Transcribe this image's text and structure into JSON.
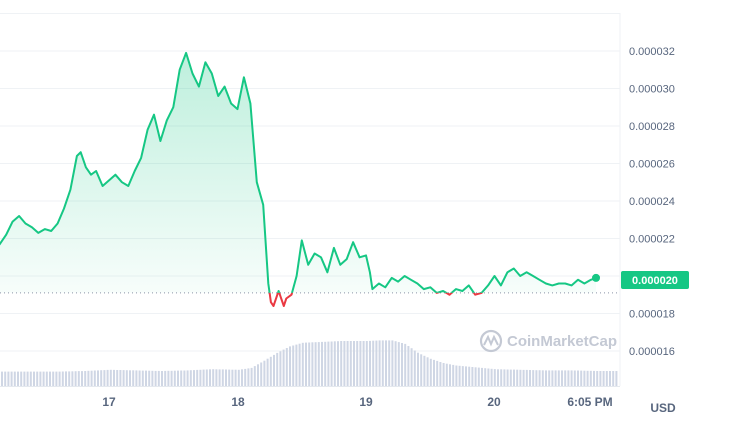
{
  "chart_data": {
    "type": "area",
    "y_ticks": [
      "0.000016",
      "0.000018",
      "0.000020",
      "0.000022",
      "0.000024",
      "0.000026",
      "0.000028",
      "0.000030",
      "0.000032"
    ],
    "x_ticks": [
      "17",
      "18",
      "19",
      "20",
      "6:05 PM"
    ],
    "unit_label": "USD",
    "current_price": "0.000020",
    "reference_price": 1.91e-05,
    "watermark": "CoinMarketCap",
    "colors": {
      "up_line": "#16c784",
      "down_line": "#ea3943",
      "price_tag": "#16c784",
      "volume": "#cfd6e4",
      "grid": "#eff2f5"
    },
    "price_series": {
      "x": [
        16.0,
        16.05,
        16.1,
        16.15,
        16.2,
        16.25,
        16.3,
        16.35,
        16.4,
        16.45,
        16.5,
        16.55,
        16.6,
        16.65,
        16.7,
        16.75,
        16.78,
        16.82,
        16.86,
        16.9,
        16.95,
        17.0,
        17.05,
        17.1,
        17.15,
        17.2,
        17.25,
        17.3,
        17.35,
        17.4,
        17.45,
        17.5,
        17.55,
        17.6,
        17.65,
        17.7,
        17.75,
        17.8,
        17.85,
        17.9,
        17.95,
        18.0,
        18.05,
        18.1,
        18.15,
        18.2,
        18.24,
        18.26,
        18.28,
        18.32,
        18.36,
        18.38,
        18.42,
        18.46,
        18.5,
        18.55,
        18.6,
        18.65,
        18.7,
        18.75,
        18.8,
        18.85,
        18.9,
        18.95,
        19.0,
        19.03,
        19.05,
        19.1,
        19.15,
        19.2,
        19.25,
        19.3,
        19.35,
        19.4,
        19.45,
        19.5,
        19.55,
        19.6,
        19.65,
        19.7,
        19.75,
        19.8,
        19.85,
        19.9,
        19.95,
        20.0,
        20.05,
        20.1,
        20.15,
        20.2,
        20.25,
        20.3,
        20.35,
        20.4,
        20.45,
        20.5,
        20.55,
        20.6,
        20.65,
        20.7,
        20.75,
        20.79
      ],
      "y": [
        2.23e-05,
        2.16e-05,
        2.13e-05,
        2.17e-05,
        2.22e-05,
        2.29e-05,
        2.32e-05,
        2.28e-05,
        2.26e-05,
        2.23e-05,
        2.25e-05,
        2.24e-05,
        2.28e-05,
        2.36e-05,
        2.46e-05,
        2.64e-05,
        2.66e-05,
        2.58e-05,
        2.54e-05,
        2.56e-05,
        2.48e-05,
        2.51e-05,
        2.54e-05,
        2.5e-05,
        2.48e-05,
        2.56e-05,
        2.63e-05,
        2.78e-05,
        2.86e-05,
        2.72e-05,
        2.83e-05,
        2.9e-05,
        3.1e-05,
        3.19e-05,
        3.08e-05,
        3.01e-05,
        3.14e-05,
        3.08e-05,
        2.96e-05,
        3.01e-05,
        2.92e-05,
        2.89e-05,
        3.06e-05,
        2.92e-05,
        2.5e-05,
        2.38e-05,
        1.96e-05,
        1.86e-05,
        1.84e-05,
        1.92e-05,
        1.84e-05,
        1.88e-05,
        1.9e-05,
        2e-05,
        2.19e-05,
        2.06e-05,
        2.12e-05,
        2.1e-05,
        2.02e-05,
        2.15e-05,
        2.06e-05,
        2.09e-05,
        2.18e-05,
        2.1e-05,
        2.11e-05,
        2.02e-05,
        1.93e-05,
        1.96e-05,
        1.94e-05,
        1.99e-05,
        1.97e-05,
        2e-05,
        1.98e-05,
        1.96e-05,
        1.93e-05,
        1.94e-05,
        1.91e-05,
        1.92e-05,
        1.9e-05,
        1.93e-05,
        1.92e-05,
        1.95e-05,
        1.9e-05,
        1.91e-05,
        1.95e-05,
        2e-05,
        1.95e-05,
        2.02e-05,
        2.04e-05,
        2e-05,
        2.02e-05,
        2e-05,
        1.98e-05,
        1.96e-05,
        1.95e-05,
        1.96e-05,
        1.96e-05,
        1.95e-05,
        1.98e-05,
        1.96e-05,
        1.98e-05,
        1.99e-05
      ]
    },
    "volume_series": {
      "x": [
        16.0,
        16.2,
        16.4,
        16.6,
        16.8,
        17.0,
        17.2,
        17.4,
        17.6,
        17.8,
        18.0,
        18.1,
        18.2,
        18.3,
        18.4,
        18.5,
        18.6,
        18.7,
        18.8,
        18.9,
        19.0,
        19.1,
        19.2,
        19.3,
        19.4,
        19.5,
        19.6,
        19.7,
        19.8,
        19.9,
        20.0,
        20.2,
        20.4,
        20.6,
        20.8
      ],
      "y": [
        0.24,
        0.24,
        0.24,
        0.24,
        0.25,
        0.27,
        0.26,
        0.25,
        0.26,
        0.28,
        0.27,
        0.3,
        0.42,
        0.55,
        0.66,
        0.72,
        0.73,
        0.74,
        0.75,
        0.75,
        0.75,
        0.76,
        0.76,
        0.7,
        0.55,
        0.45,
        0.38,
        0.34,
        0.32,
        0.3,
        0.28,
        0.27,
        0.26,
        0.26,
        0.25
      ]
    }
  }
}
